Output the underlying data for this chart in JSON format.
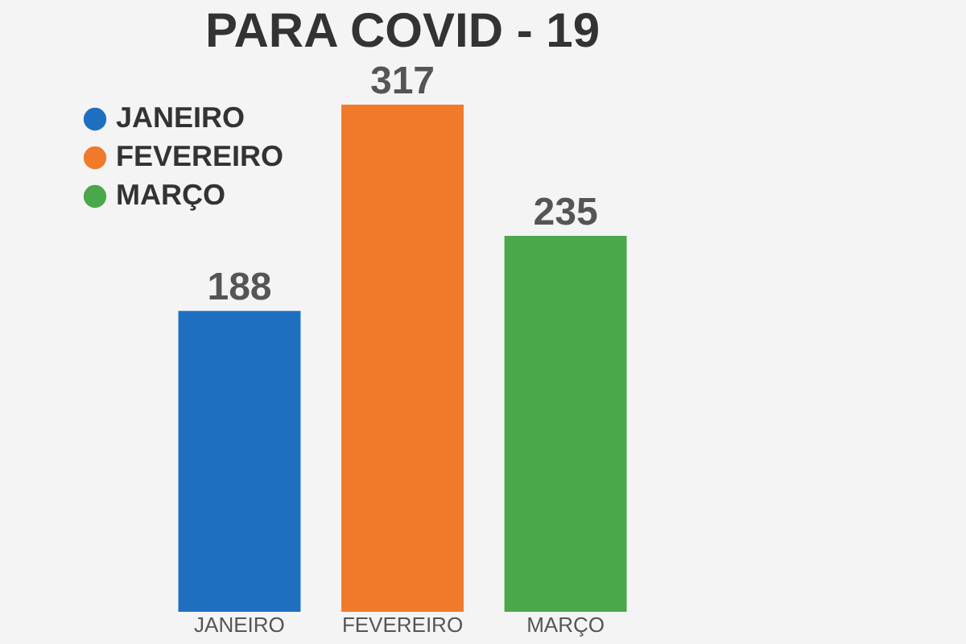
{
  "chart_data": {
    "type": "bar",
    "title": "PARA COVID - 19",
    "categories": [
      "JANEIRO",
      "FEVEREIRO",
      "MARÇO"
    ],
    "series": [
      {
        "name": "JANEIRO",
        "color": "#1f6fc0",
        "values": [
          188,
          null,
          null
        ]
      },
      {
        "name": "FEVEREIRO",
        "color": "#f07a2a",
        "values": [
          null,
          317,
          null
        ]
      },
      {
        "name": "MARÇO",
        "color": "#4aa84a",
        "values": [
          null,
          null,
          235
        ]
      }
    ],
    "data_labels": true,
    "legend": "top left",
    "grid": false
  }
}
